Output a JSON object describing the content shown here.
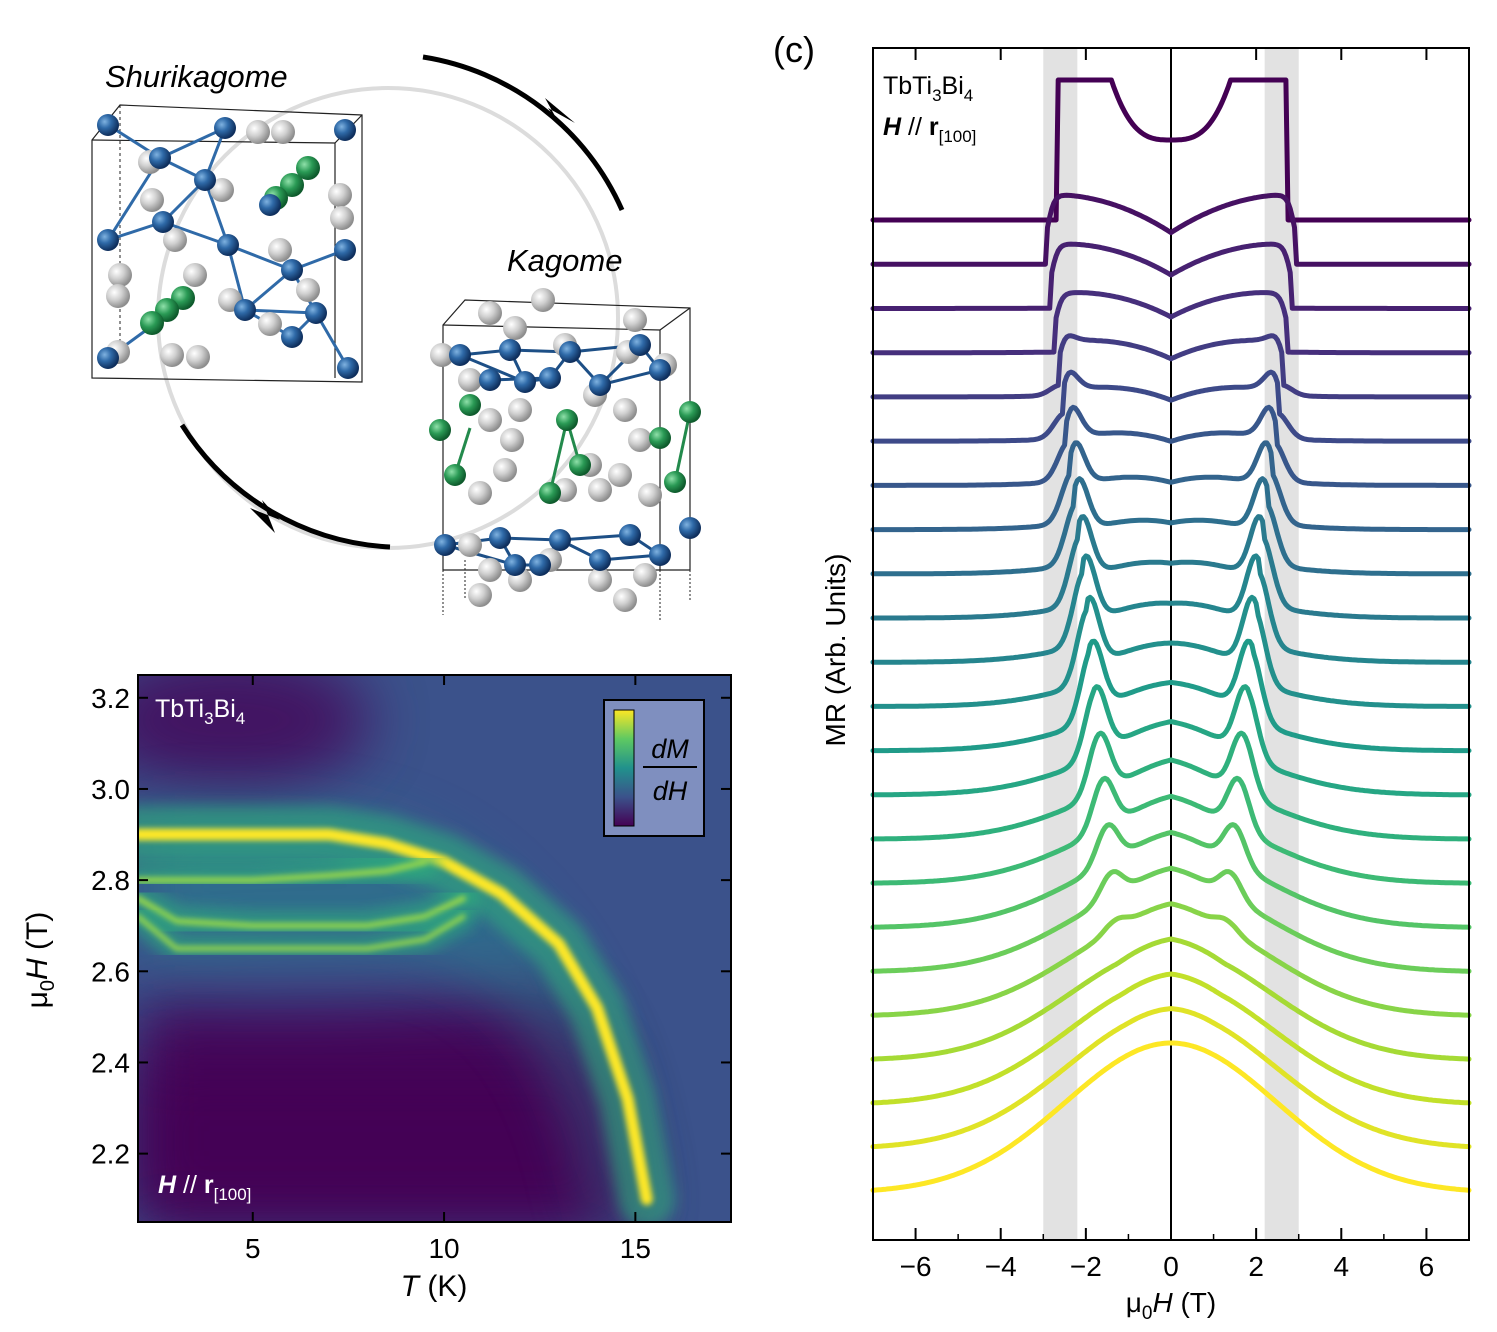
{
  "figure": {
    "cycle": {
      "label_top": "Shurikagome",
      "label_right": "Kagome"
    },
    "heatmap": {
      "compound_main": "TbTi",
      "compound_sub1": "3",
      "compound_mid": "Bi",
      "compound_sub2": "4",
      "field_dir_H": "H",
      "field_dir_sep": " // ",
      "field_dir_r": "r",
      "field_dir_sub": "[100]",
      "colorbar_num": "dM",
      "colorbar_den": "dH",
      "colors": [
        "#440154",
        "#3b528b",
        "#21918c",
        "#5ec962",
        "#fde725"
      ]
    },
    "mr": {
      "panel_label": "(c)",
      "compound_main": "TbTi",
      "compound_sub1": "3",
      "compound_mid": "Bi",
      "compound_sub2": "4",
      "field_dir_H": "H",
      "field_dir_sep": " // ",
      "field_dir_r": "r",
      "field_dir_sub": "[100]",
      "ylabel": "MR (Arb. Units)",
      "xlabel_mu": "μ",
      "xlabel_sub": "0",
      "xlabel_H": "H",
      "xlabel_unit": " (T)"
    }
  },
  "chart_data": [
    {
      "type": "heatmap",
      "xlabel": "T (K)",
      "ylabel": "μ0H (T)",
      "xlim": [
        2,
        17.5
      ],
      "ylim": [
        2.05,
        3.25
      ],
      "x_ticks": [
        "5",
        "10",
        "15"
      ],
      "x_tick_values": [
        5,
        10,
        15
      ],
      "y_ticks": [
        "2.2",
        "2.4",
        "2.6",
        "2.8",
        "3.0",
        "3.2"
      ],
      "y_tick_values": [
        2.2,
        2.4,
        2.6,
        2.8,
        3.0,
        3.2
      ],
      "colorbar_label": "dM/dH",
      "ridges": [
        {
          "T": [
            2,
            5,
            7,
            8.5,
            10,
            11.5,
            13,
            14,
            14.8,
            15.3
          ],
          "H": [
            2.9,
            2.9,
            2.9,
            2.88,
            2.84,
            2.77,
            2.66,
            2.52,
            2.32,
            2.1
          ]
        },
        {
          "T": [
            2,
            5,
            7,
            8.5,
            9.5
          ],
          "H": [
            2.8,
            2.8,
            2.81,
            2.82,
            2.84
          ]
        },
        {
          "T": [
            2,
            3,
            5,
            8,
            9.5,
            10.5
          ],
          "H": [
            2.76,
            2.71,
            2.7,
            2.7,
            2.72,
            2.76
          ]
        },
        {
          "T": [
            2,
            3,
            5,
            8,
            9.5,
            10.5
          ],
          "H": [
            2.72,
            2.65,
            2.65,
            2.65,
            2.67,
            2.72
          ]
        }
      ]
    },
    {
      "type": "line",
      "xlabel": "μ0H (T)",
      "ylabel": "MR (Arb. Units)",
      "xlim": [
        -7,
        7
      ],
      "x_ticks": [
        "−6",
        "−4",
        "−2",
        "0",
        "2",
        "4",
        "6"
      ],
      "x_tick_values": [
        -6,
        -4,
        -2,
        0,
        2,
        4,
        6
      ],
      "shaded_bands": [
        [
          -3.0,
          -2.2
        ],
        [
          2.2,
          3.0
        ]
      ],
      "series_count": 23,
      "colormap": [
        "#440154",
        "#482878",
        "#3e4989",
        "#31688e",
        "#26828e",
        "#1f9e89",
        "#35b779",
        "#6ece58",
        "#b5de2b",
        "#fde725"
      ]
    }
  ]
}
